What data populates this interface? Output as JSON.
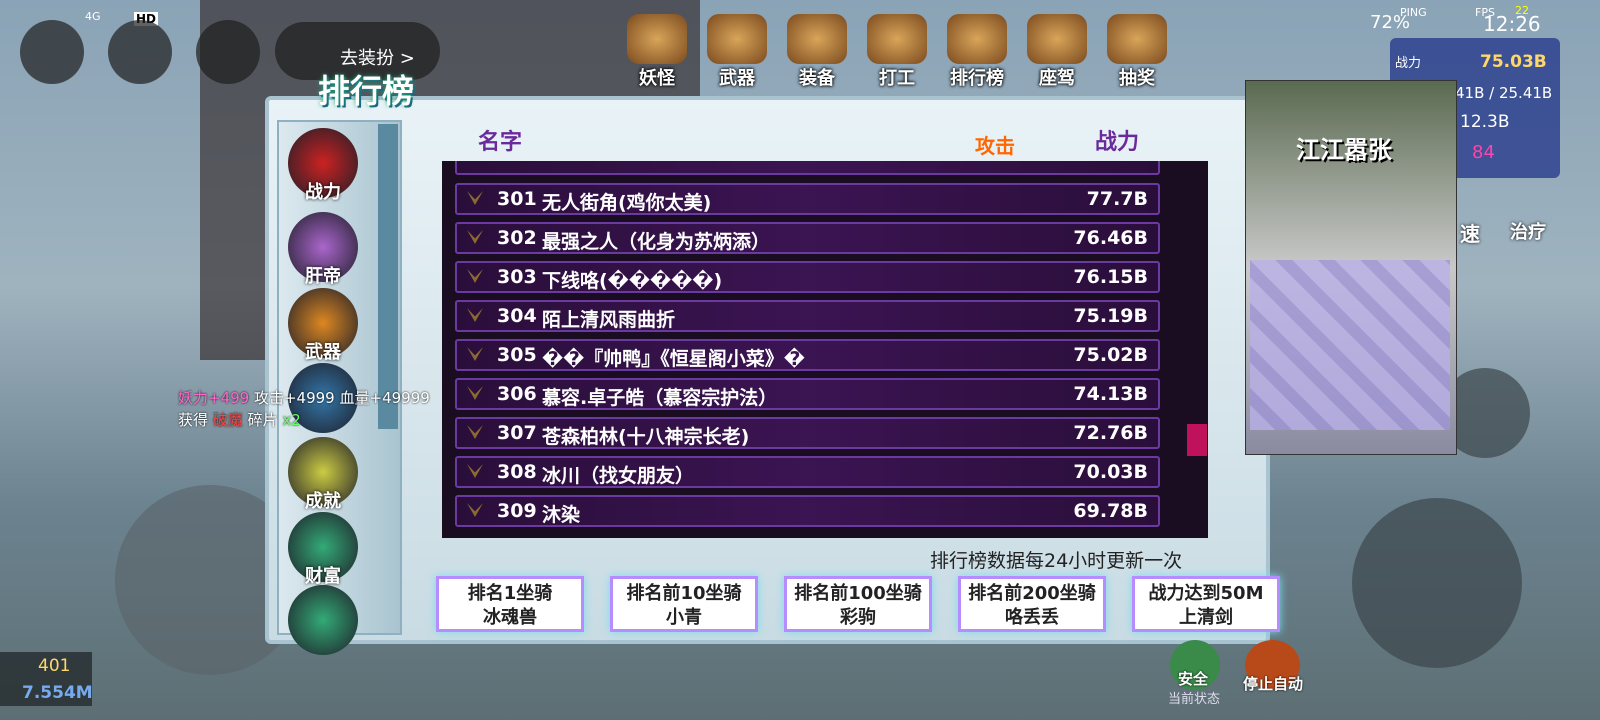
{
  "status_bar": {
    "network": "4G",
    "hd": "HD",
    "battery": "72%",
    "ping": "PING",
    "fps": "FPS",
    "fps_value": "22",
    "time": "12:26"
  },
  "top_bar": {
    "dress_up": "去装扮 >",
    "nav": [
      "妖怪",
      "武器",
      "装备",
      "打工",
      "排行榜",
      "座驾",
      "抽奖"
    ]
  },
  "stats": {
    "power_label": "战力",
    "power": "75.03B",
    "hp": "41B / 25.41B",
    "attack": "12.3B",
    "level": "84"
  },
  "skills": [
    "速",
    "治疗"
  ],
  "buff": {
    "line1": [
      "妖力+499",
      "攻击+4999",
      "血量+49999"
    ],
    "line2": [
      "获得",
      "破魔",
      "碎片",
      "x2"
    ]
  },
  "ranking": {
    "title": "排行榜",
    "columns": [
      "名字",
      "攻击",
      "战力"
    ],
    "tabs": [
      "战力",
      "肝帝",
      "武器",
      "成就",
      "财富"
    ],
    "rows": [
      {
        "rank": "301",
        "name": "无人街角(鸡你太美)",
        "power": "77.7B"
      },
      {
        "rank": "302",
        "name": "最强之人（化身为苏炳添）",
        "power": "76.46B"
      },
      {
        "rank": "303",
        "name": "下线咯(�����)",
        "power": "76.15B"
      },
      {
        "rank": "304",
        "name": "陌上清风雨曲折",
        "power": "75.19B"
      },
      {
        "rank": "305",
        "name": "��『帅鸭』《恒星阁小菜》�",
        "power": "75.02B"
      },
      {
        "rank": "306",
        "name": "慕容.卓子皓（慕容宗护法）",
        "power": "74.13B"
      },
      {
        "rank": "307",
        "name": "苍森柏林(十八神宗长老)",
        "power": "72.76B"
      },
      {
        "rank": "308",
        "name": "冰川（找女朋友）",
        "power": "70.03B"
      },
      {
        "rank": "309",
        "name": "沐染",
        "power": "69.78B"
      }
    ],
    "note": "排行榜数据每24小时更新一次",
    "rewards": [
      {
        "condition": "排名1坐骑",
        "reward": "冰魂兽"
      },
      {
        "condition": "排名前10坐骑",
        "reward": "小青"
      },
      {
        "condition": "排名前100坐骑",
        "reward": "彩驹"
      },
      {
        "condition": "排名前200坐骑",
        "reward": "咯丢丢"
      },
      {
        "condition": "战力达到50M",
        "reward": "上清剑"
      }
    ]
  },
  "video": {
    "caption": "江江嚣张"
  },
  "bottom": {
    "level": "401",
    "currency": "7.554M",
    "safe": "安全",
    "state": "当前状态",
    "auto": "停止自动"
  }
}
